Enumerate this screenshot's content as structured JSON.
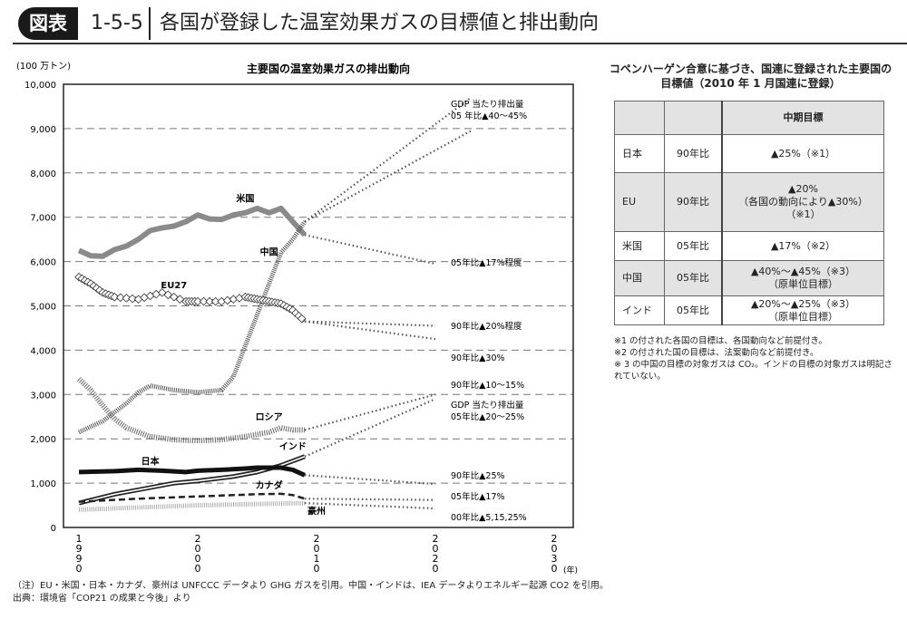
{
  "header": {
    "badge": "図表",
    "number": "1-5-5",
    "title": "各国が登録した温室効果ガスの目標値と排出動向"
  },
  "chart_data": {
    "type": "line",
    "title": "主要国の温室効果ガスの排出動向",
    "ylabel": "(100 万トン)",
    "xlabel": "(年)",
    "ylim": [
      0,
      10000
    ],
    "xlim": [
      1988.7,
      2031.6
    ],
    "yticks": [
      0,
      1000,
      2000,
      3000,
      4000,
      5000,
      6000,
      7000,
      8000,
      9000,
      10000
    ],
    "ytick_labels": [
      "0",
      "1,000",
      "2,000",
      "3,000",
      "4,000",
      "5,000",
      "6,000",
      "7,000",
      "8,000",
      "9,000",
      "10,000"
    ],
    "xticks": [
      1990,
      2000,
      2010,
      2020,
      2030
    ],
    "xtick_labels": [
      "1990",
      "2000",
      "2010",
      "2020",
      "2030"
    ],
    "grid": "horizontal dashed",
    "series": [
      {
        "name": "米国",
        "style": "gray-thick",
        "x": [
          1990,
          1991,
          1992,
          1993,
          1994,
          1995,
          1996,
          1997,
          1998,
          1999,
          2000,
          2001,
          2002,
          2003,
          2004,
          2005,
          2006,
          2007,
          2008,
          2009
        ],
        "values": [
          6250,
          6130,
          6120,
          6270,
          6350,
          6500,
          6700,
          6760,
          6800,
          6900,
          7050,
          6960,
          6950,
          7050,
          7100,
          7200,
          7100,
          7200,
          6900,
          6600
        ],
        "projection": {
          "x": [
            2009,
            2020
          ],
          "values": [
            6600,
            5950
          ]
        },
        "target_label": "05年比▲17%程度"
      },
      {
        "name": "中国",
        "style": "hatched",
        "x": [
          1990,
          1992,
          1994,
          1995,
          1996,
          1997,
          1998,
          2000,
          2002,
          2003,
          2004,
          2005,
          2006,
          2007,
          2008,
          2009
        ],
        "values": [
          2150,
          2400,
          2800,
          3050,
          3200,
          3150,
          3100,
          3050,
          3100,
          3400,
          4100,
          4800,
          5500,
          6200,
          6500,
          6900
        ],
        "projection": {
          "x": [
            2009,
            2023
          ],
          "values": [
            6900,
            9700
          ],
          "values_alt": [
            6900,
            8950
          ]
        },
        "target_label": "GDP 当たり排出量\n05 年比▲40～45%"
      },
      {
        "name": "EU27",
        "style": "diamond",
        "x": [
          1990,
          1991,
          1992,
          1993,
          1995,
          1997,
          1999,
          2000,
          2002,
          2004,
          2005,
          2006,
          2007,
          2008,
          2009
        ],
        "values": [
          5650,
          5500,
          5300,
          5200,
          5150,
          5300,
          5100,
          5100,
          5100,
          5200,
          5150,
          5100,
          5050,
          4900,
          4650
        ],
        "projection": {
          "x": [
            2009,
            2020
          ],
          "values": [
            4650,
            4550
          ],
          "values_alt": [
            4650,
            4250
          ]
        },
        "target_label": "90年比▲20%程度",
        "target_label_alt": "90年比▲30%"
      },
      {
        "name": "ロシア",
        "style": "hatched-light",
        "x": [
          1990,
          1991,
          1992,
          1993,
          1994,
          1996,
          1998,
          2000,
          2002,
          2004,
          2005,
          2006,
          2007,
          2008,
          2009
        ],
        "values": [
          3350,
          3100,
          2750,
          2450,
          2250,
          2050,
          1980,
          1960,
          1980,
          2050,
          2100,
          2150,
          2250,
          2200,
          2200
        ],
        "projection": {
          "x": [
            2009,
            2020
          ],
          "values": [
            2200,
            3000
          ]
        },
        "target_label": "90年比▲10～15%"
      },
      {
        "name": "インド",
        "style": "double",
        "x": [
          1990,
          1993,
          1995,
          1998,
          2000,
          2003,
          2005,
          2007,
          2009
        ],
        "values": [
          550,
          750,
          850,
          1000,
          1050,
          1150,
          1250,
          1400,
          1600
        ],
        "projection": {
          "x": [
            2009,
            2020
          ],
          "values": [
            1600,
            2900
          ]
        },
        "target_label": "GDP 当たり排出量\n05年比▲20～25%"
      },
      {
        "name": "日本",
        "style": "black-thick",
        "x": [
          1990,
          1993,
          1995,
          1997,
          1999,
          2000,
          2002,
          2004,
          2005,
          2007,
          2008,
          2009
        ],
        "values": [
          1250,
          1270,
          1300,
          1280,
          1250,
          1280,
          1300,
          1330,
          1350,
          1350,
          1300,
          1180
        ],
        "projection": {
          "x": [
            2009,
            2020
          ],
          "values": [
            1180,
            980
          ]
        },
        "target_label": "90年比▲25%"
      },
      {
        "name": "カナダ",
        "style": "dashed",
        "x": [
          1990,
          1995,
          2000,
          2003,
          2005,
          2007,
          2008,
          2009
        ],
        "values": [
          580,
          650,
          700,
          730,
          750,
          760,
          730,
          650
        ],
        "projection": {
          "x": [
            2009,
            2020
          ],
          "values": [
            650,
            620
          ]
        },
        "target_label": "05年比▲17%"
      },
      {
        "name": "豪州",
        "style": "hatched-gray",
        "x": [
          1990,
          1995,
          2000,
          2005,
          2009
        ],
        "values": [
          400,
          450,
          500,
          530,
          550
        ],
        "projection": {
          "x": [
            2009,
            2020
          ],
          "values": [
            550,
            430
          ]
        },
        "target_label": "00年比▲5,15,25%"
      }
    ]
  },
  "table": {
    "title": "コペンハーゲン合意に基づき、国連に登録された主要国の目標値（2010 年 1 月国連に登録）",
    "header": [
      "",
      "",
      "中期目標"
    ],
    "rows": [
      {
        "country": "日本",
        "base": "90年比",
        "target": "▲25%（※1）"
      },
      {
        "country": "EU",
        "base": "90年比",
        "target": "▲20%\n（各国の動向により▲30%）\n（※1）"
      },
      {
        "country": "米国",
        "base": "05年比",
        "target": "▲17%（※2）"
      },
      {
        "country": "中国",
        "base": "05年比",
        "target": "▲40%～▲45%（※3）\n（原単位目標）"
      },
      {
        "country": "インド",
        "base": "05年比",
        "target": "▲20%～▲25%（※3）\n（原単位目標）"
      }
    ],
    "notes": [
      "※1 の付された各国の目標は、各国動向など前提付き。",
      "※2 の付された国の目標は、法案動向など前提付き。",
      "※ 3 の中国の目標の対象ガスは CO₂。インドの目標の対象ガスは明記されていない。"
    ]
  },
  "footer": {
    "note": "（注）EU・米国・日本・カナダ、豪州は UNFCCC データより GHG ガスを引用。中国・インドは、IEA データよりエネルギー起源 CO2 を引用。",
    "source": "出典：環境省「COP21 の成果と今後」より"
  }
}
